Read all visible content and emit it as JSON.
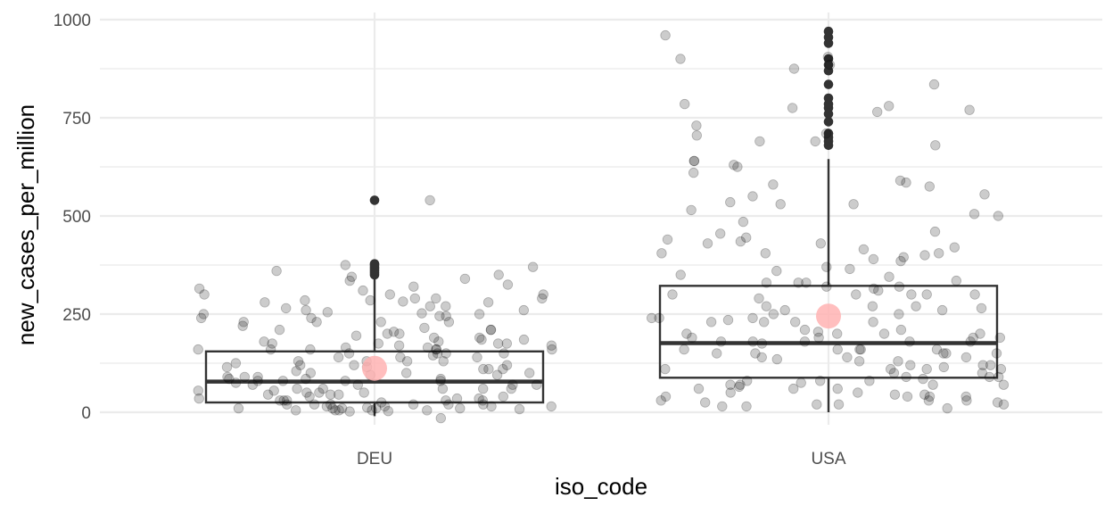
{
  "chart_data": {
    "type": "boxplot",
    "title": "",
    "xlabel": "iso_code",
    "ylabel": "new_cases_per_million",
    "categories": [
      "DEU",
      "USA"
    ],
    "ylim": [
      -25,
      1010
    ],
    "yticks": [
      0,
      250,
      500,
      750,
      1000
    ],
    "ytick_labels": [
      "0",
      "250",
      "500",
      "750",
      "1000"
    ],
    "grid": true,
    "colors": {
      "box": "#333333",
      "points": "#000000",
      "mean_marker": "#ffb3b3",
      "grid": "#ebebeb"
    },
    "boxes": [
      {
        "category": "DEU",
        "whisker_low": -10,
        "q1": 25,
        "median": 78,
        "q3": 155,
        "whisker_high": 345,
        "mean": 112,
        "outliers": [
          350,
          355,
          360,
          365,
          370,
          375,
          378,
          540
        ]
      },
      {
        "category": "USA",
        "whisker_low": 0,
        "q1": 88,
        "median": 176,
        "q3": 322,
        "whisker_high": 645,
        "mean": 245,
        "outliers": [
          680,
          690,
          700,
          710,
          740,
          760,
          775,
          785,
          800,
          835,
          870,
          885,
          900,
          940,
          955,
          970
        ]
      }
    ],
    "jitter_points": {
      "DEU": [
        540,
        285,
        252,
        170,
        180,
        160,
        80,
        60,
        20,
        15,
        10,
        230,
        250,
        280,
        282,
        210,
        160,
        140,
        120,
        95,
        75,
        50,
        35,
        15,
        5,
        255,
        185,
        175,
        165,
        150,
        110,
        90,
        70,
        40,
        20,
        10,
        300,
        310,
        340,
        360,
        345,
        325,
        280,
        260,
        200,
        175,
        150,
        125,
        100,
        85,
        60,
        45,
        30,
        20,
        10,
        5,
        375,
        370,
        335,
        300,
        265,
        230,
        190,
        160,
        130,
        105,
        80,
        55,
        30,
        12,
        3,
        350,
        290,
        270,
        250,
        205,
        195,
        175,
        145,
        120,
        95,
        70,
        45,
        25,
        8,
        320,
        240,
        215,
        165,
        140,
        110,
        85,
        60,
        35,
        15,
        5,
        180,
        170,
        160,
        150,
        140,
        130,
        115,
        100,
        90,
        80,
        70,
        60,
        50,
        40,
        30,
        20,
        10,
        2,
        315,
        240,
        230,
        210,
        190,
        160,
        130,
        110,
        85,
        55,
        30,
        15,
        5,
        -15,
        290,
        285,
        270,
        260,
        245,
        220,
        200,
        175,
        150,
        120,
        100,
        80,
        60,
        45,
        30,
        20,
        10,
        300,
        290,
        245,
        230,
        210,
        185,
        160,
        130,
        115,
        90,
        70,
        50,
        35,
        20,
        5
      ],
      "USA": [
        785,
        705,
        610,
        640,
        400,
        395,
        385,
        360,
        235,
        205,
        200,
        175,
        160,
        140,
        135,
        110,
        70,
        65,
        50,
        25,
        435,
        300,
        290,
        260,
        240,
        200,
        180,
        160,
        130,
        100,
        80,
        60,
        45,
        30,
        730,
        710,
        690,
        530,
        320,
        315,
        300,
        250,
        210,
        180,
        160,
        140,
        120,
        100,
        80,
        60,
        40,
        15,
        960,
        875,
        775,
        555,
        500,
        405,
        330,
        260,
        230,
        180,
        150,
        120,
        90,
        70,
        40,
        20,
        780,
        770,
        690,
        575,
        415,
        390,
        365,
        350,
        300,
        270,
        240,
        200,
        180,
        150,
        120,
        90,
        60,
        30,
        15,
        640,
        535,
        505,
        460,
        445,
        405,
        335,
        300,
        250,
        210,
        180,
        150,
        115,
        85,
        50,
        25,
        900,
        625,
        580,
        430,
        320,
        300,
        270,
        230,
        190,
        150,
        110,
        70,
        30,
        905,
        765,
        530,
        515,
        405,
        330,
        310,
        270,
        230,
        190,
        160,
        140,
        110,
        75,
        40,
        20,
        835,
        680,
        630,
        455,
        345,
        265,
        230,
        190,
        150,
        110,
        80,
        45,
        20,
        885,
        590,
        585,
        550,
        485,
        440,
        430,
        420,
        370,
        330,
        240,
        200,
        190,
        160,
        130,
        90,
        70,
        40,
        10
      ]
    }
  }
}
